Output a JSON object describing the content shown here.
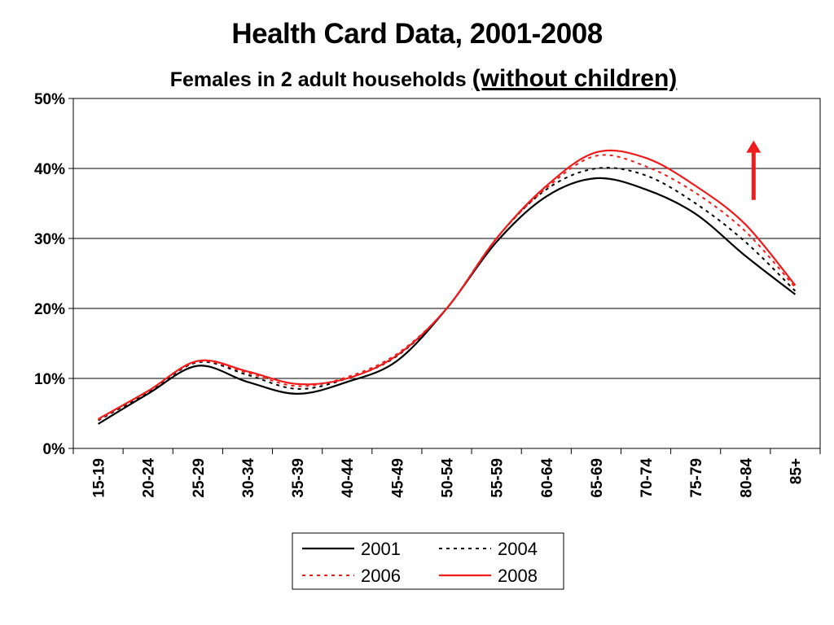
{
  "title": "Health Card Data, 2001-2008",
  "subtitle_main": "Females in 2 adult households",
  "subtitle_emphasis": "(without children)",
  "chart_data": {
    "type": "line",
    "title": "Health Card Data, 2001-2008",
    "subtitle": "Females in 2 adult households (without children)",
    "xlabel": "",
    "ylabel": "",
    "categories": [
      "15-19",
      "20-24",
      "25-29",
      "30-34",
      "35-39",
      "40-44",
      "45-49",
      "50-54",
      "55-59",
      "60-64",
      "65-69",
      "70-74",
      "75-79",
      "80-84",
      "85+"
    ],
    "ylim": [
      0,
      50
    ],
    "y_ticks": [
      "0%",
      "10%",
      "20%",
      "30%",
      "40%",
      "50%"
    ],
    "y_tick_values": [
      0,
      10,
      20,
      30,
      40,
      50
    ],
    "grid": "horizontal",
    "legend_position": "bottom",
    "series": [
      {
        "name": "2001",
        "color": "#000000",
        "dash": "solid",
        "values": [
          3.5,
          7.8,
          11.8,
          9.5,
          7.8,
          9.5,
          12.5,
          20.0,
          29.5,
          36.0,
          38.6,
          37.0,
          33.5,
          27.5,
          22.0
        ]
      },
      {
        "name": "2004",
        "color": "#000000",
        "dash": "dashed",
        "values": [
          4.0,
          8.0,
          12.3,
          10.5,
          8.5,
          10.0,
          13.2,
          20.0,
          30.0,
          37.0,
          40.0,
          39.0,
          35.0,
          29.5,
          22.5
        ]
      },
      {
        "name": "2006",
        "color": "#ee1c1c",
        "dash": "dashed",
        "values": [
          4.1,
          8.2,
          12.4,
          10.8,
          8.9,
          10.2,
          13.5,
          20.0,
          30.0,
          37.2,
          41.8,
          40.3,
          36.5,
          31.0,
          23.0
        ]
      },
      {
        "name": "2008",
        "color": "#ee1c1c",
        "dash": "solid",
        "values": [
          4.2,
          8.2,
          12.5,
          11.0,
          9.2,
          10.0,
          13.3,
          20.0,
          30.0,
          37.5,
          42.3,
          41.5,
          37.5,
          32.0,
          23.3
        ]
      }
    ],
    "annotation": {
      "type": "arrow",
      "direction": "up",
      "color": "#ee1c1c",
      "category": "80-84",
      "from": 35.5,
      "to": 44
    }
  }
}
